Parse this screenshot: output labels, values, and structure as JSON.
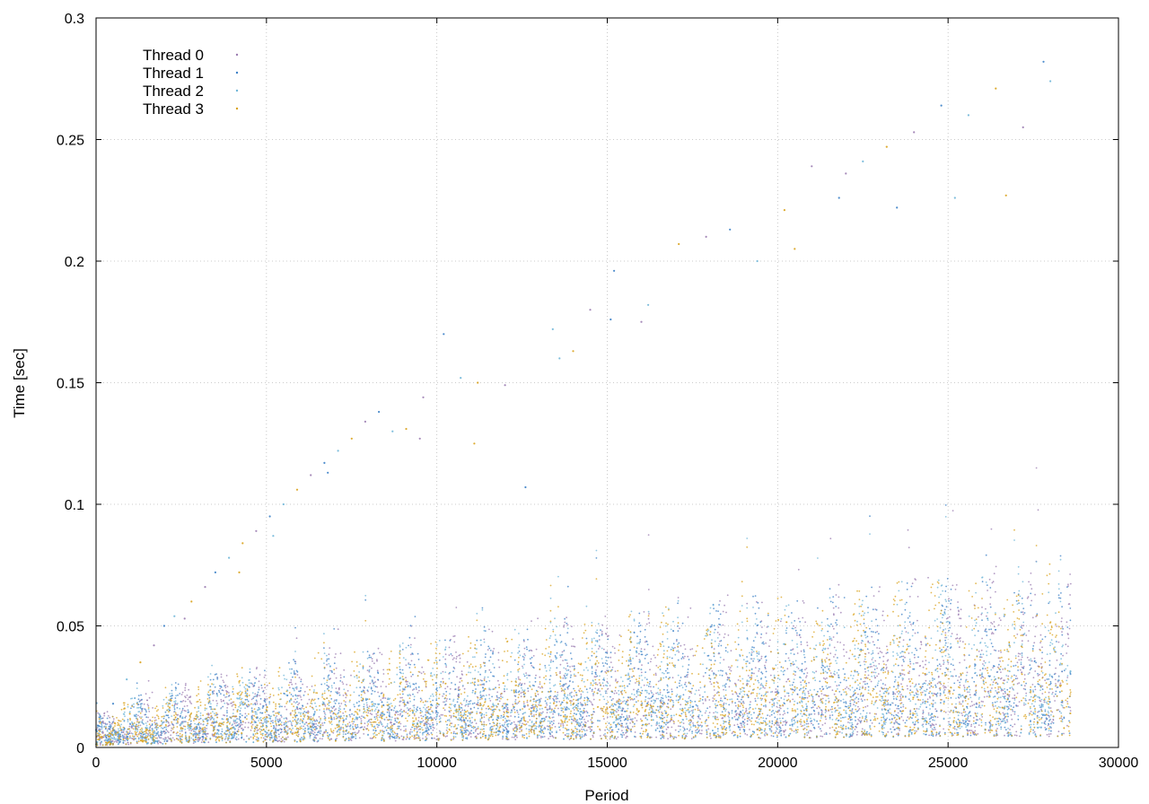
{
  "chart_data": {
    "type": "scatter",
    "xlabel": "Period",
    "ylabel": "Time [sec]",
    "xlim": [
      0,
      30000
    ],
    "ylim": [
      0,
      0.3
    ],
    "xticks": [
      0,
      5000,
      10000,
      15000,
      20000,
      25000,
      30000
    ],
    "yticks": [
      0,
      0.05,
      0.1,
      0.15,
      0.2,
      0.25,
      0.3
    ],
    "xtick_labels": [
      "0",
      "5000",
      "10000",
      "15000",
      "20000",
      "25000",
      "30000"
    ],
    "ytick_labels": [
      "0",
      "0.05",
      "0.1",
      "0.15",
      "0.2",
      "0.25",
      "0.3"
    ],
    "grid": true,
    "legend_position": "top-left",
    "marker": "dot",
    "series": [
      {
        "name": "Thread 0",
        "color": "#9a7bb0"
      },
      {
        "name": "Thread 1",
        "color": "#3a7fc6"
      },
      {
        "name": "Thread 2",
        "color": "#6fb6d8"
      },
      {
        "name": "Thread 3",
        "color": "#d9a21b"
      }
    ],
    "x_data_max": 28600,
    "outlier_points": [
      [
        200,
        0.006
      ],
      [
        500,
        0.018
      ],
      [
        900,
        0.028
      ],
      [
        1300,
        0.035
      ],
      [
        1700,
        0.042
      ],
      [
        2000,
        0.05
      ],
      [
        2300,
        0.054
      ],
      [
        2800,
        0.06
      ],
      [
        3200,
        0.066
      ],
      [
        3500,
        0.072
      ],
      [
        3900,
        0.078
      ],
      [
        4300,
        0.084
      ],
      [
        4700,
        0.089
      ],
      [
        5100,
        0.095
      ],
      [
        5500,
        0.1
      ],
      [
        5900,
        0.106
      ],
      [
        6300,
        0.112
      ],
      [
        6700,
        0.117
      ],
      [
        7100,
        0.122
      ],
      [
        7500,
        0.127
      ],
      [
        7900,
        0.134
      ],
      [
        8300,
        0.138
      ],
      [
        8700,
        0.13
      ],
      [
        9100,
        0.131
      ],
      [
        9600,
        0.144
      ],
      [
        10200,
        0.17
      ],
      [
        10700,
        0.152
      ],
      [
        11200,
        0.15
      ],
      [
        12000,
        0.149
      ],
      [
        12600,
        0.107
      ],
      [
        13400,
        0.172
      ],
      [
        14000,
        0.163
      ],
      [
        14500,
        0.18
      ],
      [
        15200,
        0.196
      ],
      [
        16200,
        0.182
      ],
      [
        17100,
        0.207
      ],
      [
        17900,
        0.21
      ],
      [
        18600,
        0.213
      ],
      [
        19400,
        0.2
      ],
      [
        20200,
        0.221
      ],
      [
        21000,
        0.239
      ],
      [
        21800,
        0.226
      ],
      [
        22500,
        0.241
      ],
      [
        23200,
        0.247
      ],
      [
        24000,
        0.253
      ],
      [
        24800,
        0.264
      ],
      [
        25600,
        0.26
      ],
      [
        26400,
        0.271
      ],
      [
        27200,
        0.255
      ],
      [
        27800,
        0.282
      ],
      [
        28000,
        0.274
      ],
      [
        20500,
        0.205
      ],
      [
        22000,
        0.236
      ],
      [
        23500,
        0.222
      ],
      [
        25200,
        0.226
      ],
      [
        26700,
        0.227
      ],
      [
        16000,
        0.175
      ],
      [
        15100,
        0.176
      ],
      [
        13600,
        0.16
      ],
      [
        11100,
        0.125
      ],
      [
        9500,
        0.127
      ],
      [
        6800,
        0.113
      ],
      [
        5200,
        0.087
      ],
      [
        4200,
        0.072
      ],
      [
        2600,
        0.053
      ]
    ]
  }
}
